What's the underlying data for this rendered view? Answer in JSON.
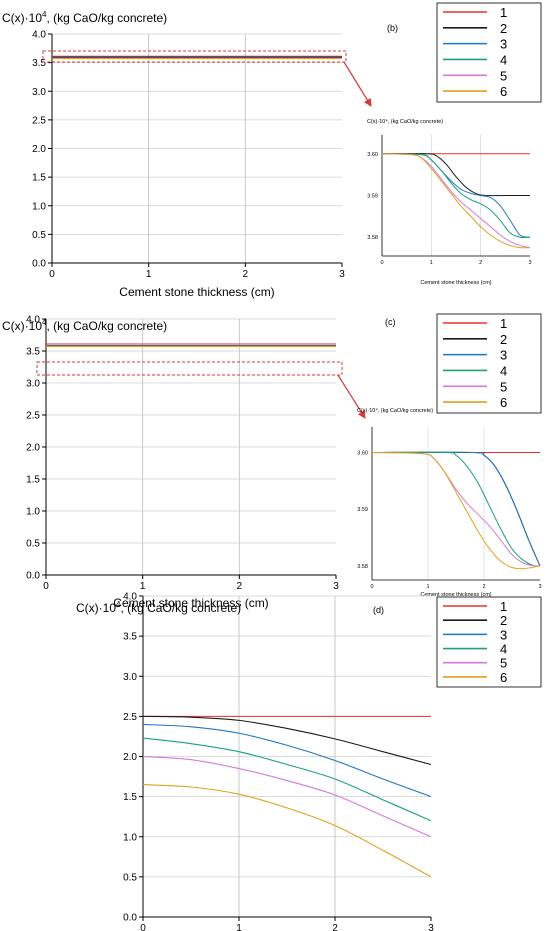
{
  "charts": [
    {
      "type": "line",
      "panel_label": "(b)",
      "ylabel_html": "C(x)·10",
      "ylabel_sup": "4",
      "ylabel_rest": ", (kg CaO/kg concrete)",
      "xlabel": "Cement stone thickness (cm)",
      "xlim": [
        0,
        3
      ],
      "ylim": [
        0,
        4
      ],
      "xticks": [
        0,
        1,
        2,
        3
      ],
      "yticks": [
        "0.0",
        "0.5",
        "1.0",
        "1.5",
        "2.0",
        "2.5",
        "3.0",
        "3.5",
        "4.0"
      ],
      "legend": [
        "1",
        "2",
        "3",
        "4",
        "5",
        "6"
      ],
      "series_values": [
        3.6,
        3.59,
        3.58,
        3.58,
        3.58,
        3.58
      ],
      "inset": {
        "ylabel": "C(x)·10⁴, (kg CaO/kg concrete)",
        "xlabel": "Cement stone thickness (cm)",
        "xticks": [
          "0",
          "1",
          "2",
          "3"
        ],
        "yticks": [
          "3.60",
          "3.59",
          "3.58"
        ],
        "ylim": [
          3.5755,
          3.6045
        ],
        "series": [
          {
            "name": "1",
            "x": [
              0,
              3
            ],
            "y": [
              3.6,
              3.6
            ]
          },
          {
            "name": "2",
            "x": [
              0,
              0.9,
              1.1,
              1.3,
              1.5,
              1.7,
              1.9,
              2.1,
              2.5,
              3.0
            ],
            "y": [
              3.6,
              3.6,
              3.5995,
              3.5975,
              3.5945,
              3.592,
              3.5905,
              3.59,
              3.59,
              3.59
            ]
          },
          {
            "name": "3",
            "x": [
              0,
              0.8,
              1.0,
              1.2,
              1.4,
              1.6,
              1.8,
              2.0,
              2.2,
              2.4,
              2.6,
              2.8,
              3.0
            ],
            "y": [
              3.6,
              3.5998,
              3.5985,
              3.596,
              3.5935,
              3.5915,
              3.5905,
              3.59,
              3.5895,
              3.5875,
              3.584,
              3.5805,
              3.58
            ]
          },
          {
            "name": "4",
            "x": [
              0,
              0.8,
              1.0,
              1.2,
              1.4,
              1.6,
              1.8,
              2.0,
              2.2,
              2.4,
              2.6,
              2.8,
              3.0
            ],
            "y": [
              3.6,
              3.5998,
              3.5985,
              3.596,
              3.593,
              3.5905,
              3.589,
              3.588,
              3.5865,
              3.584,
              3.581,
              3.58,
              3.58
            ]
          },
          {
            "name": "5",
            "x": [
              0,
              0.6,
              0.8,
              1.0,
              1.2,
              1.4,
              1.6,
              1.8,
              2.0,
              2.2,
              2.4,
              2.6,
              2.8,
              3.0
            ],
            "y": [
              3.6,
              3.5998,
              3.599,
              3.597,
              3.594,
              3.591,
              3.5885,
              3.5865,
              3.5845,
              3.5825,
              3.5805,
              3.579,
              3.578,
              3.5775
            ]
          },
          {
            "name": "6",
            "x": [
              0,
              0.6,
              0.8,
              1.0,
              1.2,
              1.4,
              1.6,
              1.8,
              2.0,
              2.2,
              2.4,
              2.6,
              2.8,
              3.0
            ],
            "y": [
              3.6,
              3.5998,
              3.599,
              3.5965,
              3.5935,
              3.5905,
              3.5875,
              3.585,
              3.5825,
              3.5805,
              3.579,
              3.578,
              3.5775,
              3.5775
            ]
          }
        ]
      }
    },
    {
      "type": "line",
      "panel_label": "(c)",
      "ylabel_html": "C(x)·10",
      "ylabel_sup": "4",
      "ylabel_rest": ", (kg CaO/kg concrete)",
      "xlabel": "Cement stone thickness (cm)",
      "xlim": [
        0,
        3
      ],
      "ylim": [
        0,
        4
      ],
      "xticks": [
        0,
        1,
        2,
        3
      ],
      "yticks": [
        "0.0",
        "0.5",
        "1.0",
        "1.5",
        "2.0",
        "2.5",
        "3.0",
        "3.5",
        "4.0"
      ],
      "legend": [
        "1",
        "2",
        "3",
        "4",
        "5",
        "6"
      ],
      "series_values": [
        3.6,
        3.58,
        3.58,
        3.58,
        3.58,
        3.58
      ],
      "inset": {
        "ylabel": "C(x)·10⁴, (kg CaO/kg concrete)",
        "xlabel": "Cement stone thickness (cm)",
        "xticks": [
          "0",
          "1",
          "2",
          "3"
        ],
        "yticks": [
          "3.60",
          "3.59",
          "3.58"
        ],
        "ylim": [
          3.5775,
          3.6045
        ],
        "series": [
          {
            "name": "1",
            "x": [
              0,
              3
            ],
            "y": [
              3.6,
              3.6
            ]
          },
          {
            "name": "2",
            "x": [
              0,
              1.8,
              2.0,
              2.2,
              2.4,
              2.6,
              2.8,
              3.0
            ],
            "y": [
              3.6,
              3.6,
              3.5995,
              3.5975,
              3.594,
              3.5895,
              3.5845,
              3.58
            ]
          },
          {
            "name": "3",
            "x": [
              0,
              1.8,
              2.0,
              2.2,
              2.4,
              2.6,
              2.8,
              3.0
            ],
            "y": [
              3.6,
              3.6,
              3.5995,
              3.5975,
              3.594,
              3.5895,
              3.5845,
              3.58
            ]
          },
          {
            "name": "4",
            "x": [
              0,
              1.3,
              1.5,
              1.7,
              1.9,
              2.1,
              2.3,
              2.5,
              2.7,
              2.9,
              3.0
            ],
            "y": [
              3.6,
              3.6,
              3.5995,
              3.5975,
              3.5945,
              3.5905,
              3.5865,
              3.583,
              3.581,
              3.58,
              3.58
            ]
          },
          {
            "name": "5",
            "x": [
              0,
              0.9,
              1.1,
              1.3,
              1.5,
              1.7,
              1.9,
              2.1,
              2.3,
              2.5,
              2.7,
              2.9,
              3.0
            ],
            "y": [
              3.6,
              3.5998,
              3.599,
              3.5965,
              3.5935,
              3.591,
              3.589,
              3.587,
              3.5845,
              3.582,
              3.5805,
              3.58,
              3.58
            ]
          },
          {
            "name": "6",
            "x": [
              0,
              0.9,
              1.1,
              1.3,
              1.5,
              1.7,
              1.9,
              2.1,
              2.3,
              2.5,
              2.7,
              2.9,
              3.0
            ],
            "y": [
              3.6,
              3.5998,
              3.599,
              3.5965,
              3.593,
              3.5895,
              3.586,
              3.583,
              3.5808,
              3.5797,
              3.5795,
              3.5798,
              3.58
            ]
          }
        ]
      }
    },
    {
      "type": "line",
      "panel_label": "(d)",
      "ylabel_html": "C(x)·10",
      "ylabel_sup": "4",
      "ylabel_rest": ", (kg CaO/kg concrete)",
      "xlabel": "Cement stone thickness (cm)",
      "xlim": [
        0,
        3
      ],
      "ylim": [
        0,
        4
      ],
      "xticks": [
        0,
        1,
        2,
        3
      ],
      "yticks": [
        "0.0",
        "0.5",
        "1.0",
        "1.5",
        "2.0",
        "2.5",
        "3.0",
        "3.5",
        "4.0"
      ],
      "legend": [
        "1",
        "2",
        "3",
        "4",
        "5",
        "6"
      ],
      "series": [
        {
          "name": "1",
          "x": [
            0,
            1,
            2,
            3
          ],
          "y": [
            2.5,
            2.5,
            2.5,
            2.5
          ]
        },
        {
          "name": "2",
          "x": [
            0,
            0.5,
            1.0,
            1.5,
            2.0,
            2.5,
            3.0
          ],
          "y": [
            2.5,
            2.49,
            2.45,
            2.35,
            2.22,
            2.06,
            1.9
          ]
        },
        {
          "name": "3",
          "x": [
            0,
            0.5,
            1.0,
            1.5,
            2.0,
            2.5,
            3.0
          ],
          "y": [
            2.4,
            2.37,
            2.29,
            2.14,
            1.95,
            1.72,
            1.5
          ]
        },
        {
          "name": "4",
          "x": [
            0,
            0.5,
            1.0,
            1.5,
            2.0,
            2.5,
            3.0
          ],
          "y": [
            2.23,
            2.16,
            2.06,
            1.9,
            1.72,
            1.46,
            1.2
          ]
        },
        {
          "name": "5",
          "x": [
            0,
            0.5,
            1.0,
            1.5,
            2.0,
            2.5,
            3.0
          ],
          "y": [
            2.0,
            1.96,
            1.85,
            1.7,
            1.52,
            1.26,
            1.0
          ]
        },
        {
          "name": "6",
          "x": [
            0,
            0.5,
            1.0,
            1.5,
            2.0,
            2.5,
            3.0
          ],
          "y": [
            1.65,
            1.62,
            1.53,
            1.36,
            1.14,
            0.83,
            0.5
          ]
        }
      ]
    }
  ],
  "colors": [
    "#e8322e",
    "#1a1a1a",
    "#1f77c4",
    "#1aa27a",
    "#d27ad8",
    "#e0a020"
  ],
  "highlight_color": "#d8383a"
}
